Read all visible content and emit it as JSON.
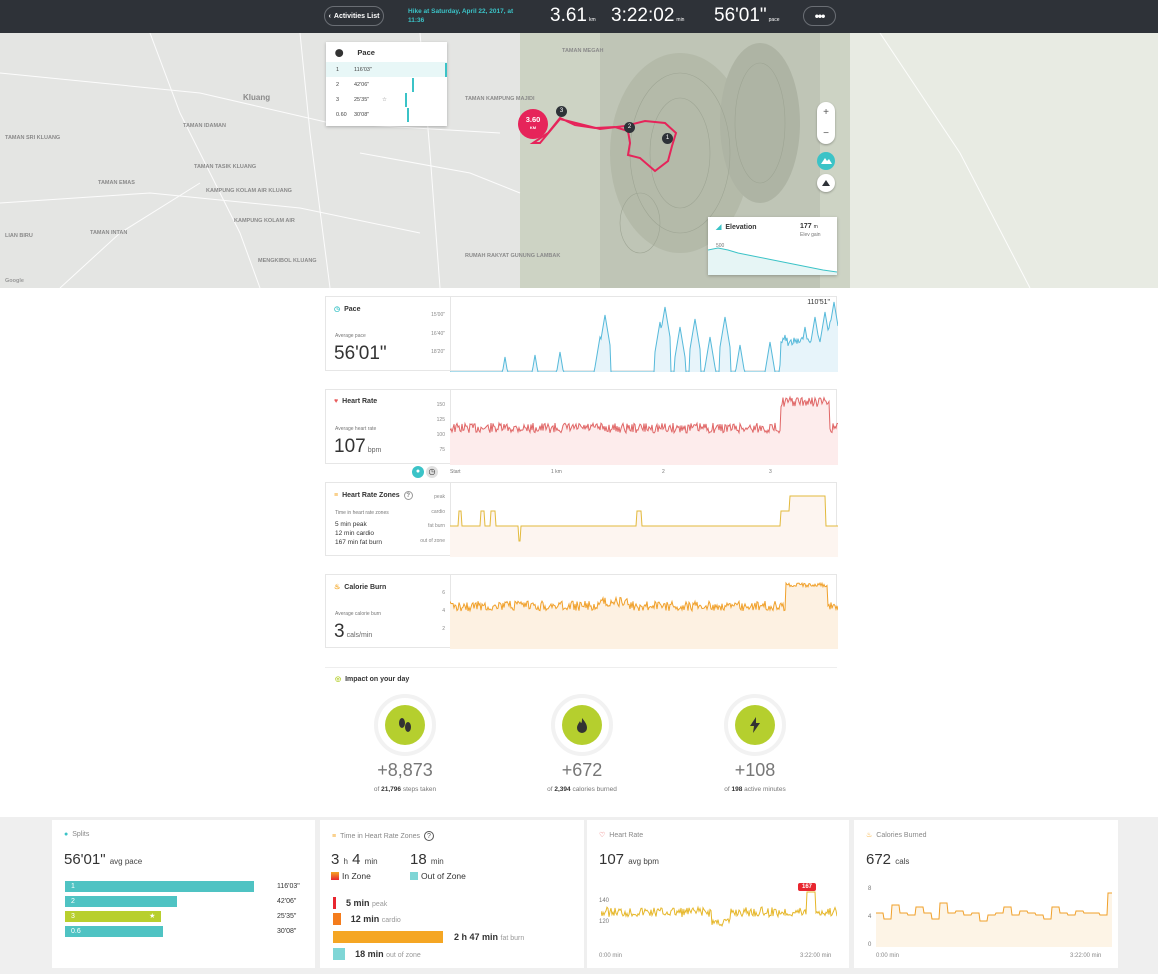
{
  "header": {
    "back_label": "Activities List",
    "activity_title": "Hike at Saturday, April 22, 2017, at 11:36",
    "distance": "3.61",
    "distance_unit": "km",
    "duration": "3:22:02",
    "duration_unit": "min",
    "pace": "56'01\"",
    "pace_unit": "pace",
    "more_label": "•••"
  },
  "map": {
    "labels": [
      "TAMAN MEGAH",
      "Kluang",
      "TAMAN IDAMAN",
      "TAMAN SRI KLUANG",
      "TAMAN TASIK KLUANG",
      "TAMAN EMAS",
      "KAMPUNG KOLAM AIR KLUANG",
      "KAMPUNG KOLAM AIR",
      "TAMAN INTAN",
      "MENGKIBOL KLUANG",
      "TAMAN KAMPUNG MAJIDI",
      "RUMAH RAKYAT GUNUNG LAMBAK",
      "LIAN BIRU",
      "Google"
    ],
    "current_marker": "3.60",
    "current_marker_unit": "KM",
    "split_markers": [
      "1",
      "2",
      "3"
    ],
    "pace_popup": {
      "title": "Pace",
      "rows": [
        {
          "n": "1",
          "value": "116'03\"",
          "frac": 1.0
        },
        {
          "n": "2",
          "value": "42'06\"",
          "frac": 0.36
        },
        {
          "n": "3",
          "value": "25'35\"",
          "frac": 0.22,
          "starred": true
        },
        {
          "n": "0.60",
          "value": "30'08\"",
          "frac": 0.26
        }
      ]
    },
    "zoom_in": "+",
    "zoom_out": "−",
    "elevation": {
      "title": "Elevation",
      "gain_value": "177",
      "gain_unit": "m",
      "gain_label": "Elev gain",
      "ticks": [
        "500",
        "250"
      ]
    }
  },
  "pace_chart": {
    "title": "Pace",
    "avg_label": "Average pace",
    "avg_value": "56'01\"",
    "ticks": [
      "15'00\"",
      "16'40\"",
      "18'20\""
    ],
    "peak_label": "110'51\""
  },
  "hr_chart": {
    "title": "Heart Rate",
    "avg_label": "Average heart rate",
    "avg_value": "107",
    "avg_unit": "bpm",
    "ticks": [
      "150",
      "125",
      "100",
      "75"
    ]
  },
  "xaxis": {
    "labels": [
      "Start",
      "1 km",
      "2",
      "3"
    ]
  },
  "zones_chart": {
    "title": "Heart Rate Zones",
    "info": "?",
    "sub_label": "Time in heart rate zones",
    "lines": [
      "5 min peak",
      "12 min cardio",
      "167 min fat burn"
    ],
    "ticks": [
      "peak",
      "cardio",
      "fat burn",
      "out of zone"
    ]
  },
  "cal_chart": {
    "title": "Calorie Burn",
    "avg_label": "Average calorie burn",
    "avg_value": "3",
    "avg_unit": "cals/min",
    "ticks": [
      "6",
      "4",
      "2"
    ]
  },
  "impact": {
    "title": "Impact on your day",
    "items": [
      {
        "icon": "footsteps-icon",
        "value": "+8,873",
        "of": "of",
        "total": "21,796",
        "label": "steps taken"
      },
      {
        "icon": "flame-icon",
        "value": "+672",
        "of": "of",
        "total": "2,394",
        "label": "calories burned"
      },
      {
        "icon": "bolt-icon",
        "value": "+108",
        "of": "of",
        "total": "198",
        "label": "active minutes"
      }
    ]
  },
  "splits": {
    "title": "Splits",
    "avg_value": "56'01\"",
    "avg_label": "avg pace",
    "rows": [
      {
        "n": "1",
        "value": "116'03\"",
        "frac": 1.0,
        "color": "#4fc3c3"
      },
      {
        "n": "2",
        "value": "42'06\"",
        "frac": 0.59,
        "color": "#4fc3c3"
      },
      {
        "n": "3",
        "value": "25'35\"",
        "frac": 0.51,
        "color": "#b8cf2e",
        "starred": true
      },
      {
        "n": "0.6",
        "value": "30'08\"",
        "frac": 0.52,
        "color": "#4fc3c3"
      }
    ]
  },
  "zones_card": {
    "title": "Time in Heart Rate Zones",
    "info": "?",
    "in_h": "3",
    "h": "h",
    "in_m": "4",
    "m": "min",
    "in_label": "In Zone",
    "out_m": "18",
    "out_unit": "min",
    "out_label": "Out of Zone",
    "rows": [
      {
        "value": "5 min",
        "label": "peak",
        "color": "#e8262f",
        "frac": 0.02
      },
      {
        "value": "12 min",
        "label": "cardio",
        "color": "#f47c1c",
        "frac": 0.07
      },
      {
        "value": "2 h 47 min",
        "label": "fat burn",
        "color": "#f5a623",
        "frac": 1.0
      },
      {
        "value": "18 min",
        "label": "out of zone",
        "color": "#7fd6d6",
        "frac": 0.11
      }
    ]
  },
  "hr_card": {
    "title": "Heart Rate",
    "avg_value": "107",
    "avg_label": "avg bpm",
    "ticks": [
      "140",
      "120"
    ],
    "peak_badge": "167",
    "x_start": "0:00 min",
    "x_end": "3:22:00 min"
  },
  "cal_card": {
    "title": "Calories Burned",
    "value": "672",
    "unit": "cals",
    "ticks": [
      "8",
      "4",
      "0"
    ],
    "x_start": "0:00 min",
    "x_end": "3:22:00 min"
  }
}
